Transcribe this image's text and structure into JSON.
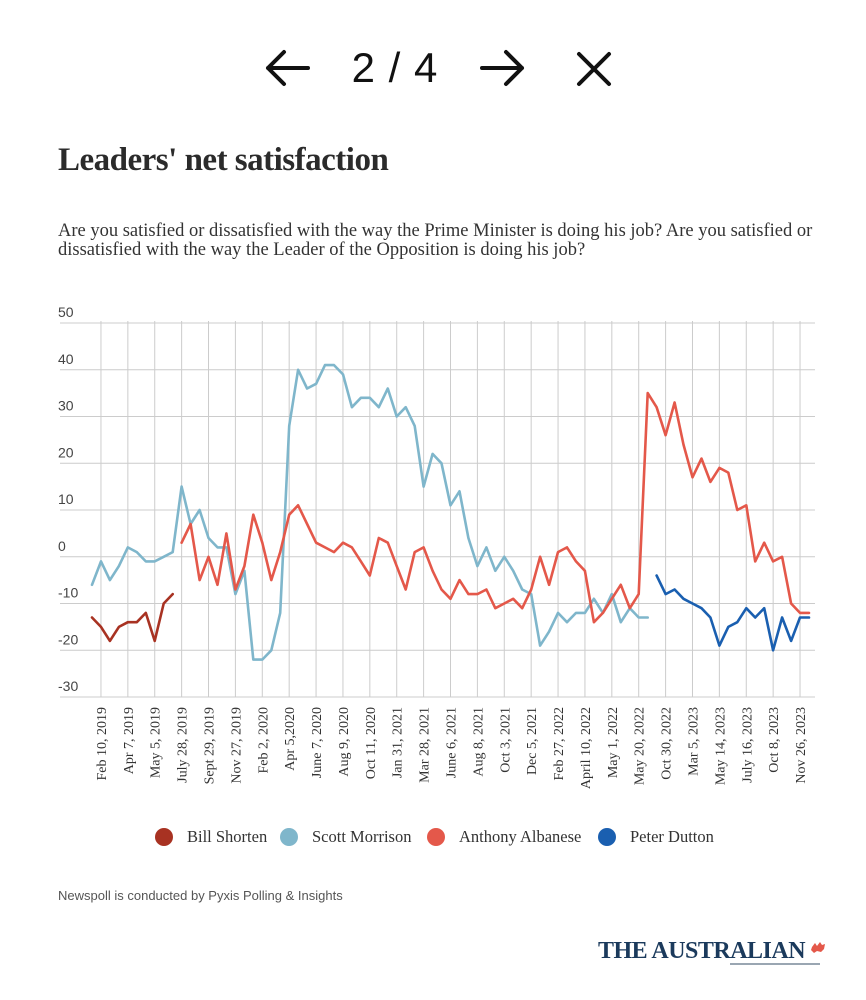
{
  "viewer": {
    "counter": "2 / 4",
    "prev_icon": "arrow-left-icon",
    "next_icon": "arrow-right-icon",
    "close_icon": "close-icon"
  },
  "title": "Leaders' net satisfaction",
  "subtitle": "Are you satisfied or dissatisfied with the way the Prime Minister is doing his job? Are you satisfied or dissatisfied with the way the Leader of the Opposition is doing his job?",
  "source": "Newspoll is conducted by Pyxis Polling & Insights",
  "brand": {
    "name": "THE AUSTRALIAN",
    "mark_icon": "brand-mark-icon"
  },
  "colors": {
    "bill_shorten": "#a83222",
    "scott_morrison": "#7fb6cb",
    "anthony_albanese": "#e4584a",
    "peter_dutton": "#1a5fb0",
    "grid": "#cccccc",
    "brand": "#1b3a5c"
  },
  "chart_data": {
    "type": "line",
    "title": "Leaders' net satisfaction",
    "xlabel": "",
    "ylabel": "",
    "ylim": [
      -30,
      50
    ],
    "yticks": [
      50,
      40,
      30,
      20,
      10,
      0,
      -10,
      -20,
      -30
    ],
    "grid": true,
    "legend_position": "bottom",
    "x_count": 91,
    "x_tick_labels": [
      {
        "index": 1,
        "label": "Feb 10, 2019"
      },
      {
        "index": 4,
        "label": "Apr 7, 2019"
      },
      {
        "index": 7,
        "label": "May 5, 2019"
      },
      {
        "index": 10,
        "label": "July 28, 2019"
      },
      {
        "index": 13,
        "label": "Sept 29, 2019"
      },
      {
        "index": 16,
        "label": "Nov 27, 2019"
      },
      {
        "index": 19,
        "label": "Feb 2, 2020"
      },
      {
        "index": 22,
        "label": "Apr 5,2020"
      },
      {
        "index": 25,
        "label": "June 7, 2020"
      },
      {
        "index": 28,
        "label": "Aug 9, 2020"
      },
      {
        "index": 31,
        "label": "Oct 11, 2020"
      },
      {
        "index": 34,
        "label": "Jan 31, 2021"
      },
      {
        "index": 37,
        "label": "Mar 28, 2021"
      },
      {
        "index": 40,
        "label": "June 6, 2021"
      },
      {
        "index": 43,
        "label": "Aug 8, 2021"
      },
      {
        "index": 46,
        "label": "Oct 3, 2021"
      },
      {
        "index": 49,
        "label": "Dec 5, 2021"
      },
      {
        "index": 52,
        "label": "Feb 27, 2022"
      },
      {
        "index": 55,
        "label": "April 10, 2022"
      },
      {
        "index": 58,
        "label": "May 1, 2022"
      },
      {
        "index": 61,
        "label": "May 20, 2022"
      },
      {
        "index": 64,
        "label": "Oct 30, 2022"
      },
      {
        "index": 67,
        "label": "Mar 5, 2023"
      },
      {
        "index": 70,
        "label": "May 14, 2023"
      },
      {
        "index": 73,
        "label": "July 16, 2023"
      },
      {
        "index": 76,
        "label": "Oct 8, 2023"
      },
      {
        "index": 79,
        "label": "Nov 26, 2023"
      }
    ],
    "series": [
      {
        "name": "Bill Shorten",
        "color": "#a83222",
        "x": [
          0,
          1,
          2,
          3,
          4,
          5,
          6,
          7,
          8,
          9
        ],
        "values": [
          -13,
          -15,
          -18,
          -15,
          -14,
          -14,
          -12,
          -18,
          -10,
          -8
        ]
      },
      {
        "name": "Scott Morrison",
        "color": "#7fb6cb",
        "x": [
          0,
          1,
          2,
          3,
          4,
          5,
          6,
          7,
          8,
          9,
          10,
          11,
          12,
          13,
          14,
          15,
          16,
          17,
          18,
          19,
          20,
          21,
          22,
          23,
          24,
          25,
          26,
          27,
          28,
          29,
          30,
          31,
          32,
          33,
          34,
          35,
          36,
          37,
          38,
          39,
          40,
          41,
          42,
          43,
          44,
          45,
          46,
          47,
          48,
          49,
          50,
          51,
          52,
          53,
          54,
          55,
          56,
          57,
          58,
          59,
          60,
          61,
          62
        ],
        "values": [
          -6,
          -1,
          -5,
          -2,
          2,
          1,
          -1,
          -1,
          0,
          1,
          15,
          7,
          10,
          4,
          2,
          2,
          -8,
          -3,
          -22,
          -22,
          -20,
          -12,
          28,
          40,
          36,
          37,
          41,
          41,
          39,
          32,
          34,
          34,
          32,
          36,
          30,
          32,
          28,
          15,
          22,
          20,
          11,
          14,
          4,
          -2,
          2,
          -3,
          0,
          -3,
          -7,
          -8,
          -19,
          -16,
          -12,
          -14,
          -12,
          -12,
          -9,
          -12,
          -8,
          -14,
          -11,
          -13,
          -13
        ]
      },
      {
        "name": "Anthony Albanese",
        "color": "#e4584a",
        "x": [
          10,
          11,
          12,
          13,
          14,
          15,
          16,
          17,
          18,
          19,
          20,
          21,
          22,
          23,
          24,
          25,
          26,
          27,
          28,
          29,
          30,
          31,
          32,
          33,
          34,
          35,
          36,
          37,
          38,
          39,
          40,
          41,
          42,
          43,
          44,
          45,
          46,
          47,
          48,
          49,
          50,
          51,
          52,
          53,
          54,
          55,
          56,
          57,
          58,
          59,
          60,
          61,
          62,
          63,
          64,
          65,
          66,
          67,
          68,
          69,
          70,
          71,
          72,
          73,
          74,
          75,
          76,
          77,
          78,
          79,
          80
        ],
        "values": [
          3,
          7,
          -5,
          0,
          -6,
          5,
          -7,
          -2,
          9,
          3,
          -5,
          1,
          9,
          11,
          7,
          3,
          2,
          1,
          3,
          2,
          -1,
          -4,
          4,
          3,
          -2,
          -7,
          1,
          2,
          -3,
          -7,
          -9,
          -5,
          -8,
          -8,
          -7,
          -11,
          -10,
          -9,
          -11,
          -7,
          0,
          -6,
          1,
          2,
          -1,
          -3,
          -14,
          -12,
          -9,
          -6,
          -11,
          -8,
          35,
          32,
          26,
          33,
          24,
          17,
          21,
          16,
          19,
          18,
          10,
          11,
          -1,
          3,
          -1,
          0,
          -10,
          -12,
          -12
        ]
      },
      {
        "name": "Peter Dutton",
        "color": "#1a5fb0",
        "x": [
          63,
          64,
          65,
          66,
          67,
          68,
          69,
          70,
          71,
          72,
          73,
          74,
          75,
          76,
          77,
          78,
          79,
          80
        ],
        "values": [
          -4,
          -8,
          -7,
          -9,
          -10,
          -11,
          -13,
          -19,
          -15,
          -14,
          -11,
          -13,
          -11,
          -20,
          -13,
          -18,
          -13,
          -13
        ]
      }
    ]
  }
}
